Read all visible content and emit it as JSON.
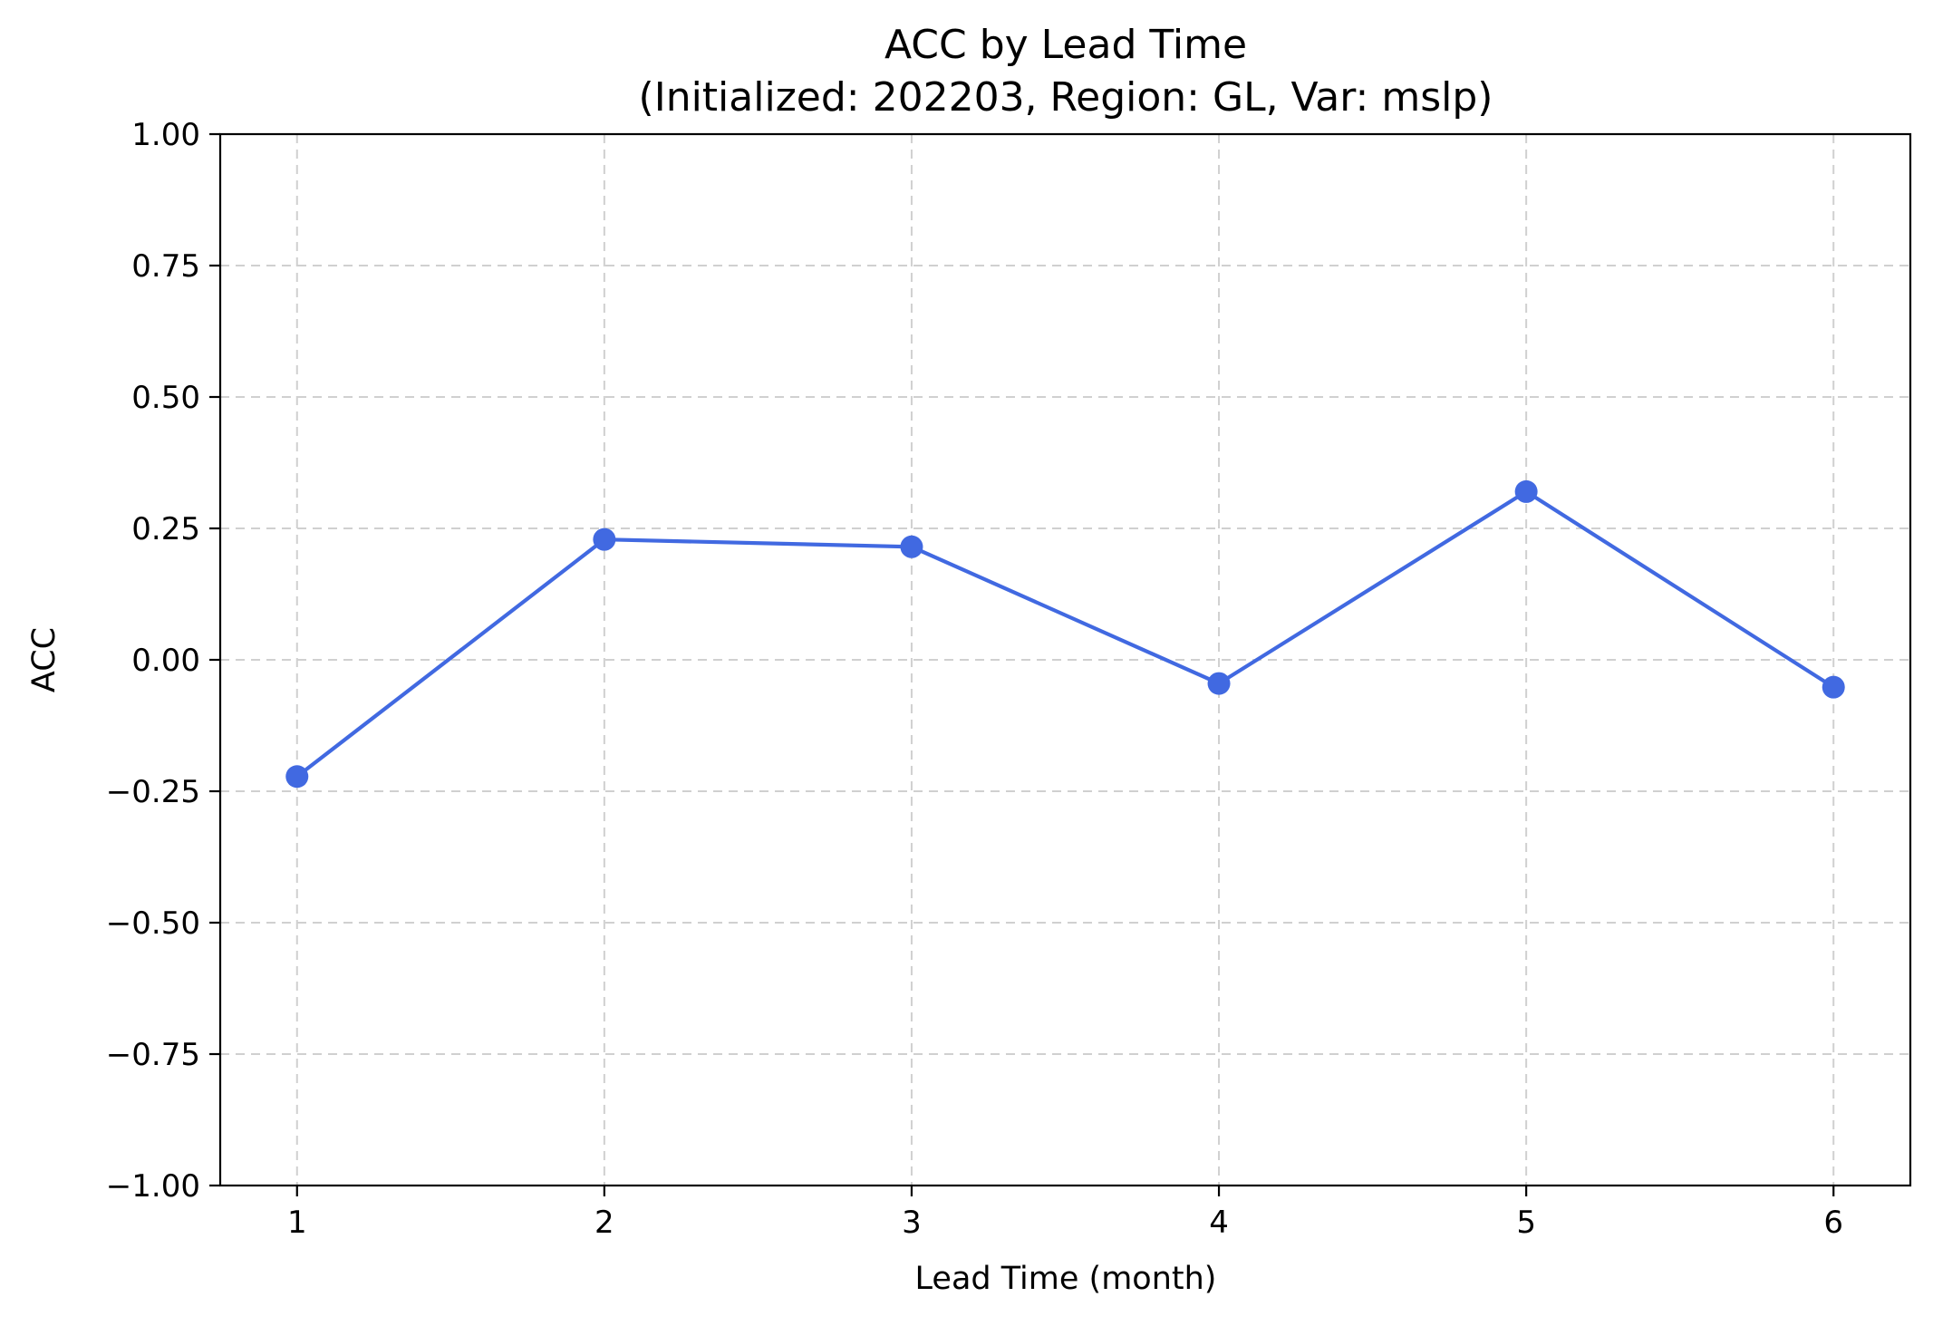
{
  "chart_data": {
    "type": "line",
    "title": "ACC by Lead Time",
    "subtitle": "(Initialized: 202203, Region: GL, Var: mslp)",
    "xlabel": "Lead Time (month)",
    "ylabel": "ACC",
    "x": [
      1,
      2,
      3,
      4,
      5,
      6
    ],
    "series": [
      {
        "values": [
          -0.222,
          0.229,
          0.215,
          -0.045,
          0.32,
          -0.052
        ],
        "color": "#4169E1",
        "marker": "circle"
      }
    ],
    "xlim": [
      0.75,
      6.25
    ],
    "ylim": [
      -1.0,
      1.0
    ],
    "xticks": [
      1,
      2,
      3,
      4,
      5,
      6
    ],
    "xtick_labels": [
      "1",
      "2",
      "3",
      "4",
      "5",
      "6"
    ],
    "yticks": [
      -1.0,
      -0.75,
      -0.5,
      -0.25,
      0.0,
      0.25,
      0.5,
      0.75,
      1.0
    ],
    "ytick_labels": [
      "−1.00",
      "−0.75",
      "−0.50",
      "−0.25",
      "0.00",
      "0.25",
      "0.50",
      "0.75",
      "1.00"
    ],
    "grid": true,
    "legend": null
  }
}
